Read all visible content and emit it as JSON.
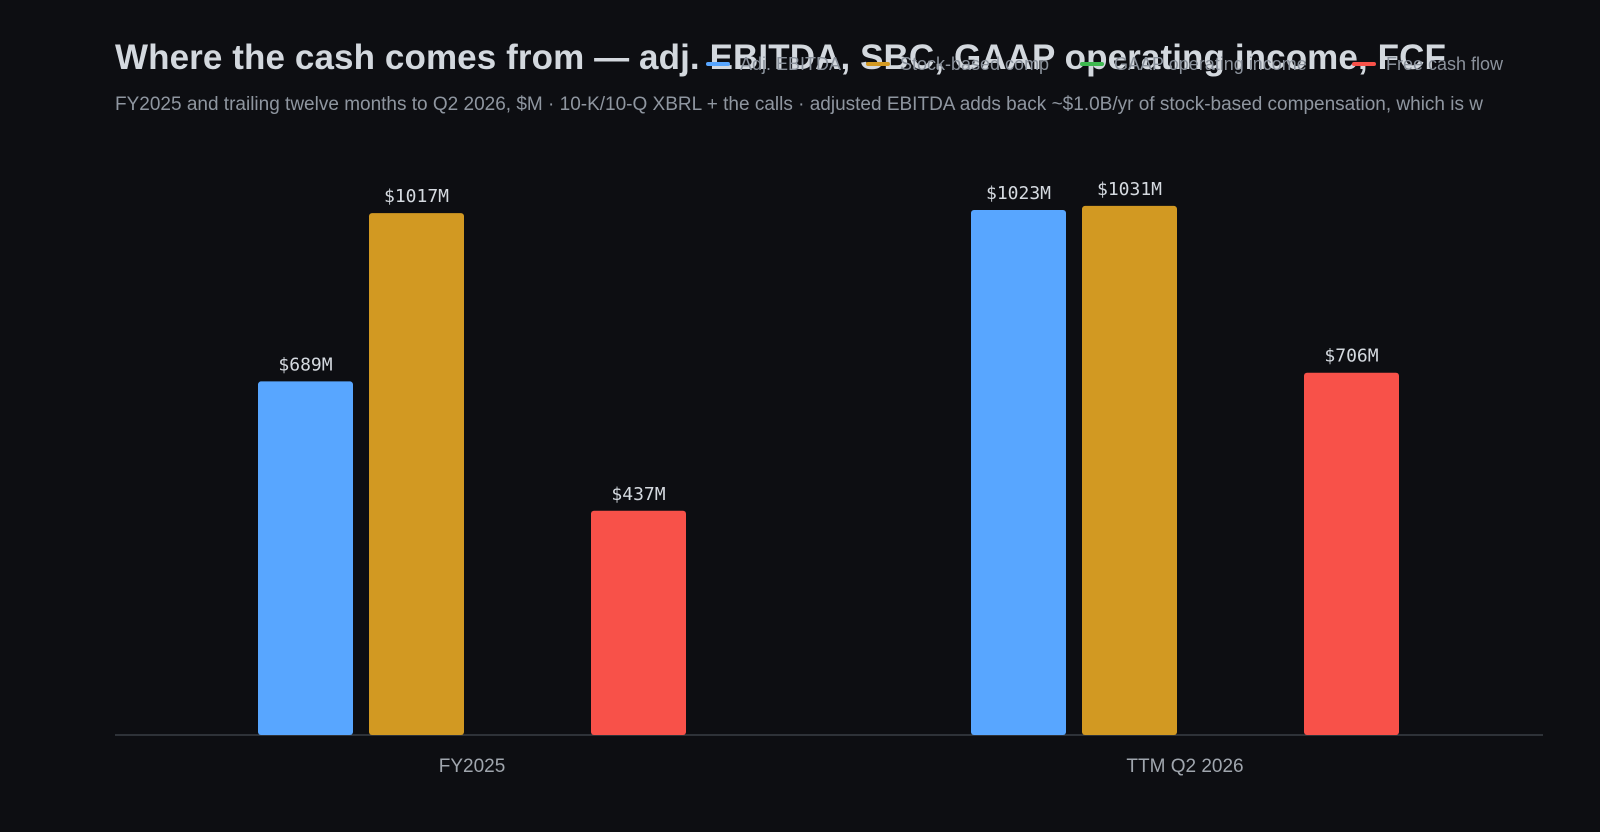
{
  "chart_data": {
    "type": "bar",
    "title": "Where the cash comes from — adj. EBITDA, SBC, GAAP operating income, FCF",
    "subtitle": "FY2025 and trailing twelve months to Q2 2026, $M · 10-K/10-Q XBRL + the calls · adjusted EBITDA adds back ~$1.0B/yr of stock-based compensation, which is w",
    "categories": [
      "FY2025",
      "TTM Q2 2026"
    ],
    "series": [
      {
        "name": "Adj. EBITDA",
        "color": "#58a6ff",
        "values": [
          689,
          1023
        ],
        "labels": [
          "$689M",
          "$1023M"
        ]
      },
      {
        "name": "Stock-based comp",
        "color": "#d29922",
        "values": [
          1017,
          1031
        ],
        "labels": [
          "$1017M",
          "$1031M"
        ]
      },
      {
        "name": "GAAP operating income",
        "color": "#3fb950",
        "values": [
          0,
          0
        ],
        "labels": [
          "",
          ""
        ]
      },
      {
        "name": "Free cash flow",
        "color": "#f85149",
        "values": [
          437,
          706
        ],
        "labels": [
          "$437M",
          "$706M"
        ]
      }
    ],
    "xlabel": "",
    "ylabel": "",
    "ylim": [
      0,
      1140
    ],
    "grid": false,
    "legend_position": "top-right"
  }
}
